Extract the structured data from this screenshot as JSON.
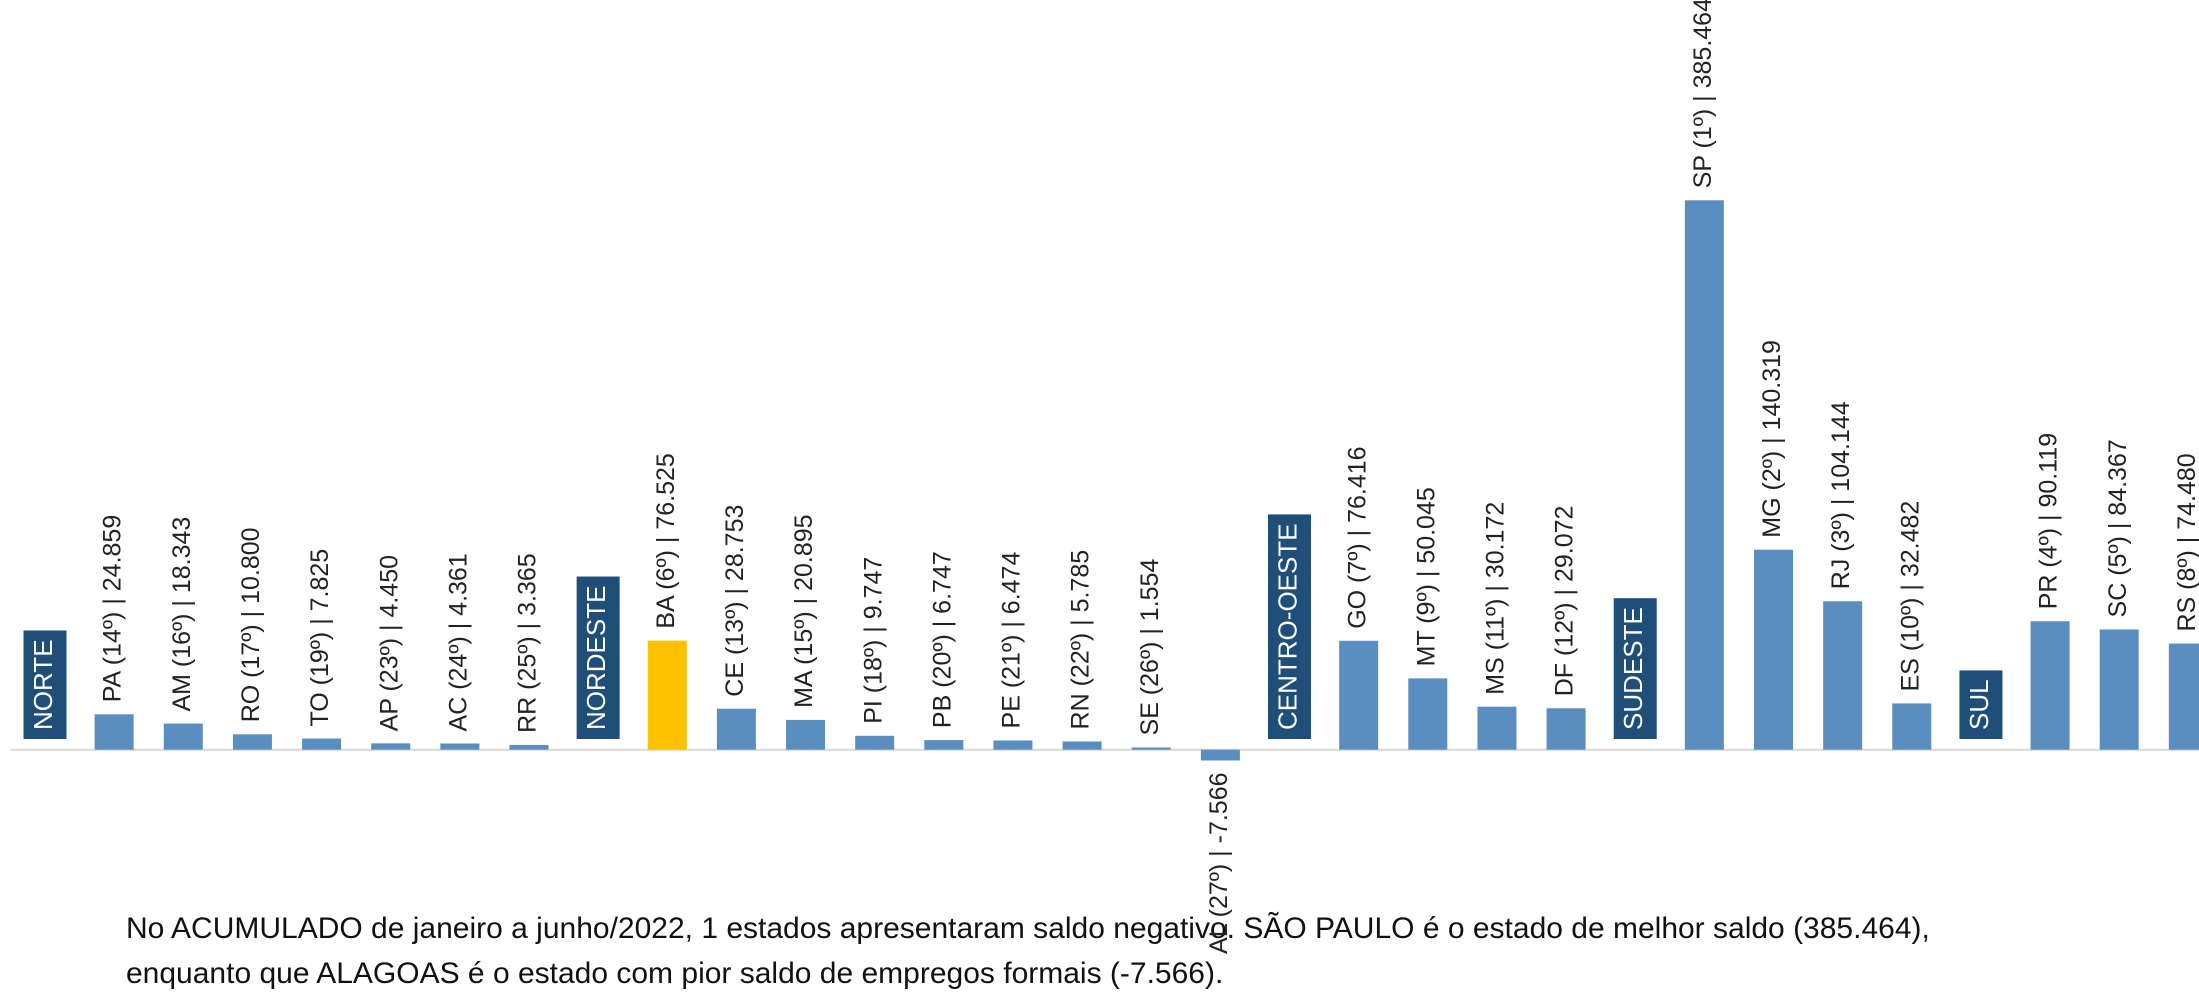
{
  "chart_data": {
    "type": "bar",
    "color": "#5a8ec1",
    "highlight": {
      "group": 1,
      "index": 0,
      "color": "#ffc000"
    },
    "group_color": "#1f4e79",
    "ylim": [
      -170000,
      526000
    ],
    "groups": [
      {
        "name": "NORTE",
        "values": [
          24859,
          18343,
          10800,
          7825,
          4450,
          4361,
          3365
        ],
        "value_labels": [
          "PA (14º) | 24.859",
          "AM (16º) | 18.343",
          "RO (17º) | 10.800",
          "TO (19º) | 7.825",
          "AP (23º) | 4.450",
          "AC (24º) | 4.361",
          "RR (25º) | 3.365"
        ]
      },
      {
        "name": "NORDESTE",
        "values": [
          76525,
          28753,
          20895,
          9747,
          6747,
          6474,
          5785,
          1554,
          -7566
        ],
        "value_labels": [
          "BA (6º) | 76.525",
          "CE (13º) | 28.753",
          "MA (15º) | 20.895",
          "PI (18º) | 9.747",
          "PB (20º) | 6.747",
          "PE (21º) | 6.474",
          "RN (22º) | 5.785",
          "SE (26º) | 1.554",
          "AL (27º) | -7.566"
        ]
      },
      {
        "name": "CENTRO-OESTE",
        "values": [
          76416,
          50045,
          30172,
          29072
        ],
        "value_labels": [
          "GO (7º) | 76.416",
          "MT (9º) | 50.045",
          "MS (11º) | 30.172",
          "DF (12º) | 29.072"
        ]
      },
      {
        "name": "SUDESTE",
        "values": [
          385464,
          140319,
          104144,
          32482
        ],
        "value_labels": [
          "SP (1º) | 385.464",
          "MG (2º) | 140.319",
          "RJ (3º) | 104.144",
          "ES (10º) | 32.482"
        ]
      },
      {
        "name": "SUL",
        "values": [
          90119,
          84367,
          74480
        ],
        "value_labels": [
          "PR (4º) | 90.119",
          "SC (5º) | 84.367",
          "RS (8º) | 74.480"
        ]
      }
    ],
    "annotations": [
      "No ACUMULADO de janeiro a junho/2022, 1 estados apresentaram saldo negativo. SÃO PAULO é o estado de melhor saldo (385.464),",
      "enquanto que ALAGOAS é o estado com pior saldo de empregos formais (-7.566)."
    ]
  }
}
